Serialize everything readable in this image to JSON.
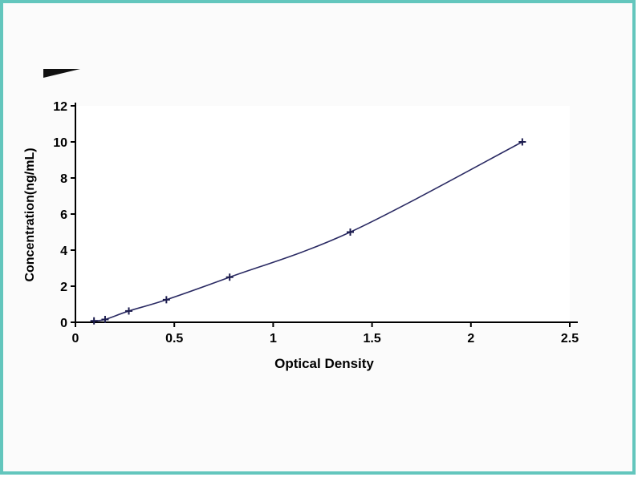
{
  "frame": {
    "border_color": "#63c6bd",
    "background": "#fbfbfb",
    "plot_background": "#ffffff"
  },
  "chart_data": {
    "type": "line",
    "title": "",
    "xlabel": "Optical Density",
    "ylabel": "Concentration(ng/mL)",
    "x": [
      0.094,
      0.15,
      0.27,
      0.46,
      0.78,
      1.39,
      2.26
    ],
    "y": [
      0.078,
      0.156,
      0.625,
      1.25,
      2.5,
      5,
      10
    ],
    "xlim": [
      0,
      2.5
    ],
    "ylim": [
      0,
      12
    ],
    "xtick_values": [
      0,
      0.5,
      1,
      1.5,
      2,
      2.5
    ],
    "xtick_labels": [
      "0",
      "0.5",
      "1",
      "1.5",
      "2",
      "2.5"
    ],
    "ytick_values": [
      0,
      2,
      4,
      6,
      8,
      10,
      12
    ],
    "ytick_labels": [
      "0",
      "2",
      "4",
      "6",
      "8",
      "10",
      "12"
    ],
    "line_color": "#2a2a63",
    "marker": "plus",
    "marker_color": "#1d1d4f",
    "axis_color": "#000000",
    "grid": false,
    "legend": "none"
  }
}
